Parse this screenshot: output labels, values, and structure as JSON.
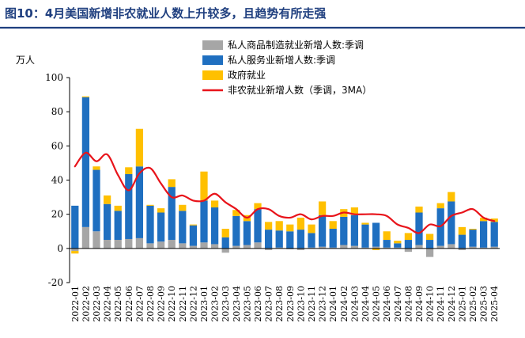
{
  "figure": {
    "title": "图10：4月美国新增非农就业人数上升较多，且趋势有所走强",
    "title_color": "#1f3f7f",
    "rule_color": "#1f3f7f"
  },
  "chart_data": {
    "type": "bar",
    "stacked": true,
    "ylabel": "万人",
    "ylim": [
      -20,
      100
    ],
    "yticks": [
      -20,
      0,
      20,
      40,
      60,
      80,
      100
    ],
    "categories": [
      "2022-01",
      "2022-02",
      "2022-03",
      "2022-04",
      "2022-05",
      "2022-06",
      "2022-07",
      "2022-08",
      "2022-09",
      "2022-10",
      "2022-11",
      "2022-12",
      "2023-01",
      "2023-02",
      "2023-03",
      "2023-04",
      "2023-05",
      "2023-06",
      "2023-07",
      "2023-08",
      "2023-09",
      "2023-10",
      "2023-11",
      "2023-12",
      "2024-01",
      "2024-02",
      "2024-03",
      "2024-04",
      "2024-05",
      "2024-06",
      "2024-07",
      "2024-08",
      "2024-09",
      "2024-10",
      "2024-11",
      "2024-12",
      "2025-01",
      "2025-02",
      "2025-03",
      "2025-04"
    ],
    "series": [
      {
        "name": "私人商品制造就业新增人数:季调",
        "color": "#a6a6a6",
        "kind": "bar",
        "values": [
          -1.5,
          12.5,
          10,
          5,
          5,
          5.5,
          6,
          3,
          4,
          5,
          3,
          1.5,
          3.5,
          2.5,
          -2.5,
          1.5,
          2,
          3.5,
          -1,
          0.5,
          -0.5,
          -1,
          0.5,
          1,
          0.5,
          2,
          1.5,
          0.5,
          1,
          0.5,
          0.5,
          -2,
          2,
          -5,
          1.5,
          2.5,
          -1,
          1,
          0.5,
          1
        ]
      },
      {
        "name": "私人服务业新增人数:季调",
        "color": "#1f6fc0",
        "kind": "bar",
        "values": [
          25,
          76,
          36,
          21,
          17,
          38,
          42,
          22,
          17,
          31,
          19,
          12,
          24.5,
          21.5,
          6.5,
          17.5,
          14,
          19.5,
          11,
          10,
          10,
          11,
          8.5,
          18.5,
          11,
          16.5,
          18,
          13.5,
          14,
          4.5,
          2.5,
          5,
          19,
          5,
          22,
          25,
          8,
          10,
          15.5,
          14.5
        ]
      },
      {
        "name": "政府就业",
        "color": "#ffc000",
        "kind": "bar",
        "values": [
          -1.5,
          0.5,
          2,
          5,
          3,
          4,
          22,
          0.5,
          2.5,
          4.5,
          3.5,
          0.5,
          17,
          4,
          5,
          3.5,
          3.5,
          3.5,
          4.5,
          5.5,
          4,
          7,
          5,
          8,
          4.5,
          4.5,
          4.5,
          1,
          -1,
          5,
          1.5,
          4,
          3.5,
          3.5,
          3,
          5.5,
          4.5,
          0.5,
          2,
          2
        ]
      },
      {
        "name": "非农就业新增人数（季调，3MA）",
        "color": "#e8141b",
        "kind": "line",
        "values": [
          48,
          56,
          51,
          55,
          43,
          34,
          44,
          47,
          38,
          30,
          31,
          28,
          28,
          32,
          27,
          23,
          18,
          23,
          23,
          19,
          18,
          20,
          17,
          19,
          19,
          21,
          20,
          20,
          20,
          19,
          14,
          12,
          9,
          14,
          13,
          19,
          21,
          23,
          18,
          16
        ]
      }
    ],
    "legend_position": "top-right"
  }
}
